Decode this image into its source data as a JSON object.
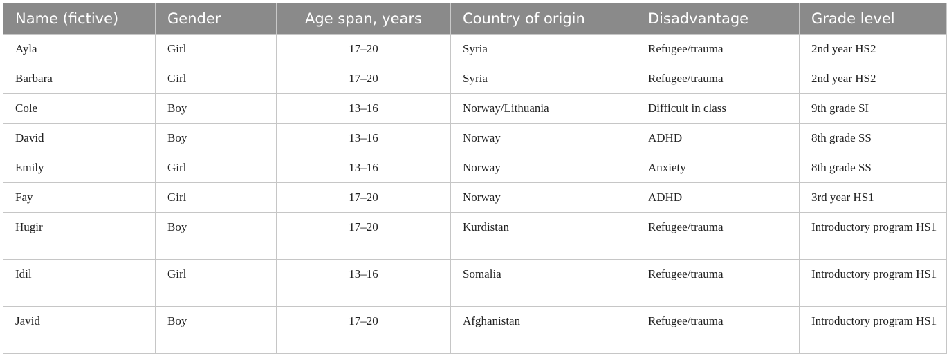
{
  "table": {
    "headers": [
      "Name (fictive)",
      "Gender",
      "Age span, years",
      "Country of origin",
      "Disadvantage",
      "Grade level"
    ],
    "rows": [
      [
        "Ayla",
        "Girl",
        "17–20",
        "Syria",
        "Refugee/trauma",
        "2nd year HS2"
      ],
      [
        "Barbara",
        "Girl",
        "17–20",
        "Syria",
        "Refugee/trauma",
        "2nd year HS2"
      ],
      [
        "Cole",
        "Boy",
        "13–16",
        "Norway/Lithuania",
        "Difficult in class",
        "9th grade SI"
      ],
      [
        "David",
        "Boy",
        "13–16",
        "Norway",
        "ADHD",
        "8th grade SS"
      ],
      [
        "Emily",
        "Girl",
        "13–16",
        "Norway",
        "Anxiety",
        "8th grade SS"
      ],
      [
        "Fay",
        "Girl",
        "17–20",
        "Norway",
        "ADHD",
        "3rd year HS1"
      ],
      [
        "Hugir",
        "Boy",
        "17–20",
        "Kurdistan",
        "Refugee/trauma",
        "Introductory program HS1"
      ],
      [
        "Idil",
        "Girl",
        "13–16",
        "Somalia",
        "Refugee/trauma",
        "Introductory program HS1"
      ],
      [
        "Javid",
        "Boy",
        "17–20",
        "Afghanistan",
        "Refugee/trauma",
        "Introductory program HS1"
      ]
    ]
  },
  "colors": {
    "header_bg": "#8a8a8a",
    "header_text": "#ffffff",
    "grid": "#c6c6c6"
  }
}
